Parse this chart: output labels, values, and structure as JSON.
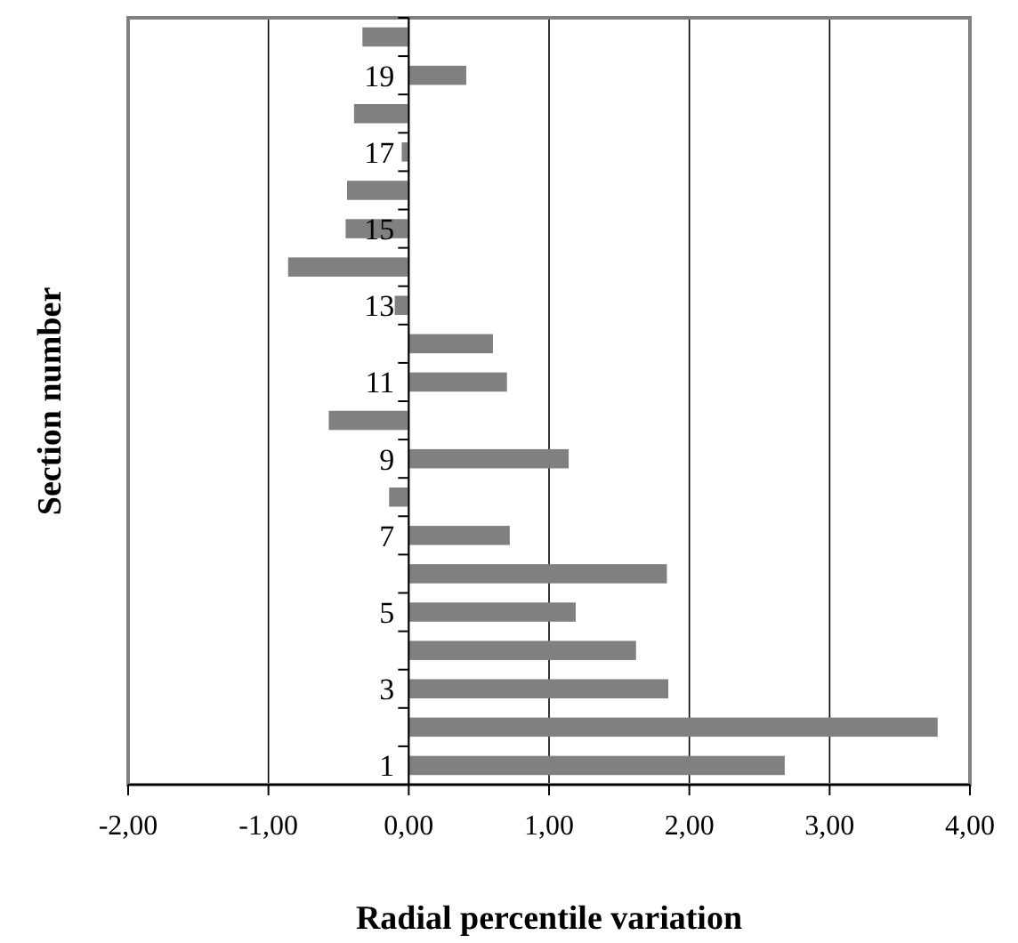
{
  "chart_data": {
    "type": "bar",
    "orientation": "horizontal",
    "xlabel": "Radial percentile variation",
    "ylabel": "Section number",
    "categories": [
      null,
      "19",
      null,
      "17",
      null,
      "15",
      null,
      "13",
      null,
      "11",
      null,
      "9",
      null,
      "7",
      null,
      "5",
      null,
      "3",
      null,
      "1"
    ],
    "values": [
      -0.33,
      0.41,
      -0.39,
      -0.05,
      -0.44,
      -0.45,
      -0.86,
      -0.1,
      0.6,
      0.7,
      -0.57,
      1.14,
      -0.14,
      0.72,
      1.84,
      1.19,
      1.62,
      1.85,
      3.77,
      2.68
    ],
    "color": "#808080",
    "xlim": [
      -2,
      4
    ],
    "xticks": [
      {
        "value": -2,
        "label": "-2,00"
      },
      {
        "value": -1,
        "label": "-1,00"
      },
      {
        "value": 0,
        "label": "0,00"
      },
      {
        "value": 1,
        "label": "1,00"
      },
      {
        "value": 2,
        "label": "2,00"
      },
      {
        "value": 3,
        "label": "3,00"
      },
      {
        "value": 4,
        "label": "4,00"
      }
    ],
    "grid": "x"
  }
}
